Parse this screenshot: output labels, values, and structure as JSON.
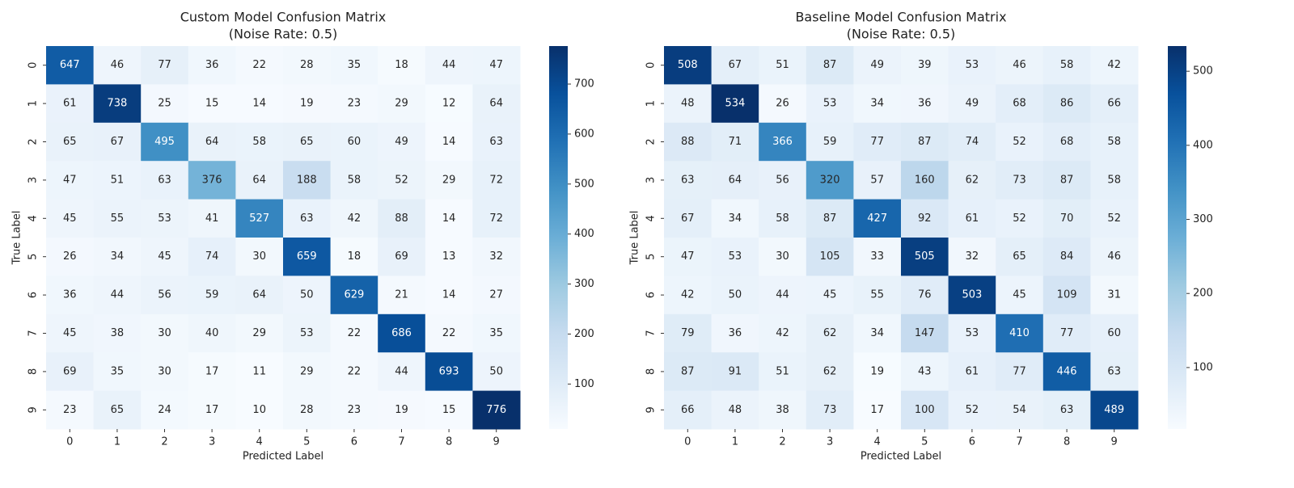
{
  "chart_data": [
    {
      "type": "heatmap",
      "title": "Custom Model Confusion Matrix",
      "subtitle": "(Noise Rate: 0.5)",
      "x_label": "Predicted Label",
      "y_label": "True Label",
      "x_categories": [
        "0",
        "1",
        "2",
        "3",
        "4",
        "5",
        "6",
        "7",
        "8",
        "9"
      ],
      "y_categories": [
        "0",
        "1",
        "2",
        "3",
        "4",
        "5",
        "6",
        "7",
        "8",
        "9"
      ],
      "colormap": "Blues",
      "clim": [
        10,
        776
      ],
      "cticks": [
        100,
        200,
        300,
        400,
        500,
        600,
        700
      ],
      "values": [
        [
          647,
          46,
          77,
          36,
          22,
          28,
          35,
          18,
          44,
          47
        ],
        [
          61,
          738,
          25,
          15,
          14,
          19,
          23,
          29,
          12,
          64
        ],
        [
          65,
          67,
          495,
          64,
          58,
          65,
          60,
          49,
          14,
          63
        ],
        [
          47,
          51,
          63,
          376,
          64,
          188,
          58,
          52,
          29,
          72
        ],
        [
          45,
          55,
          53,
          41,
          527,
          63,
          42,
          88,
          14,
          72
        ],
        [
          26,
          34,
          45,
          74,
          30,
          659,
          18,
          69,
          13,
          32
        ],
        [
          36,
          44,
          56,
          59,
          64,
          50,
          629,
          21,
          14,
          27
        ],
        [
          45,
          38,
          30,
          40,
          29,
          53,
          22,
          686,
          22,
          35
        ],
        [
          69,
          35,
          30,
          17,
          11,
          29,
          22,
          44,
          693,
          50
        ],
        [
          23,
          65,
          24,
          17,
          10,
          28,
          23,
          19,
          15,
          776
        ]
      ]
    },
    {
      "type": "heatmap",
      "title": "Baseline Model Confusion Matrix",
      "subtitle": "(Noise Rate: 0.5)",
      "x_label": "Predicted Label",
      "y_label": "True Label",
      "x_categories": [
        "0",
        "1",
        "2",
        "3",
        "4",
        "5",
        "6",
        "7",
        "8",
        "9"
      ],
      "y_categories": [
        "0",
        "1",
        "2",
        "3",
        "4",
        "5",
        "6",
        "7",
        "8",
        "9"
      ],
      "colormap": "Blues",
      "clim": [
        17,
        534
      ],
      "cticks": [
        100,
        200,
        300,
        400,
        500
      ],
      "values": [
        [
          508,
          67,
          51,
          87,
          49,
          39,
          53,
          46,
          58,
          42
        ],
        [
          48,
          534,
          26,
          53,
          34,
          36,
          49,
          68,
          86,
          66
        ],
        [
          88,
          71,
          366,
          59,
          77,
          87,
          74,
          52,
          68,
          58
        ],
        [
          63,
          64,
          56,
          320,
          57,
          160,
          62,
          73,
          87,
          58
        ],
        [
          67,
          34,
          58,
          87,
          427,
          92,
          61,
          52,
          70,
          52
        ],
        [
          47,
          53,
          30,
          105,
          33,
          505,
          32,
          65,
          84,
          46
        ],
        [
          42,
          50,
          44,
          45,
          55,
          76,
          503,
          45,
          109,
          31
        ],
        [
          79,
          36,
          42,
          62,
          34,
          147,
          53,
          410,
          77,
          60
        ],
        [
          87,
          91,
          51,
          62,
          19,
          43,
          61,
          77,
          446,
          63
        ],
        [
          66,
          48,
          38,
          73,
          17,
          100,
          52,
          54,
          63,
          489
        ]
      ]
    }
  ]
}
